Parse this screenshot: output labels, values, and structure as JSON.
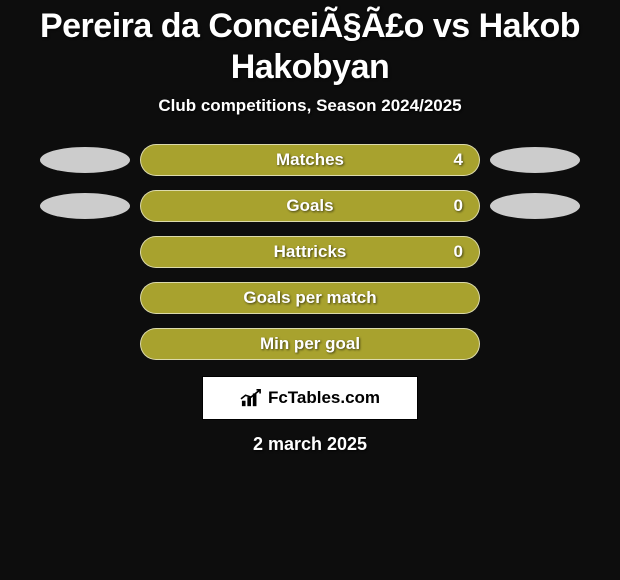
{
  "header": {
    "title": "Pereira da ConceiÃ§Ã£o vs Hakob Hakobyan",
    "subtitle": "Club competitions, Season 2024/2025"
  },
  "chart": {
    "bar_color": "#a8a22e",
    "bar_border_color": "rgba(255,255,255,0.6)",
    "ellipse_color": "#cccccc",
    "background_color": "#0d0d0d",
    "text_color": "#ffffff",
    "label_fontsize": 17,
    "label_fontweight": 800,
    "rows": [
      {
        "label": "Matches",
        "value": "4",
        "show_left_ellipse": true,
        "show_right_ellipse": true
      },
      {
        "label": "Goals",
        "value": "0",
        "show_left_ellipse": true,
        "show_right_ellipse": true
      },
      {
        "label": "Hattricks",
        "value": "0",
        "show_left_ellipse": false,
        "show_right_ellipse": false
      },
      {
        "label": "Goals per match",
        "value": "",
        "show_left_ellipse": false,
        "show_right_ellipse": false
      },
      {
        "label": "Min per goal",
        "value": "",
        "show_left_ellipse": false,
        "show_right_ellipse": false
      }
    ]
  },
  "source": {
    "text": "FcTables.com",
    "box_bg": "#ffffff",
    "box_border": "#000000"
  },
  "date": "2 march 2025"
}
